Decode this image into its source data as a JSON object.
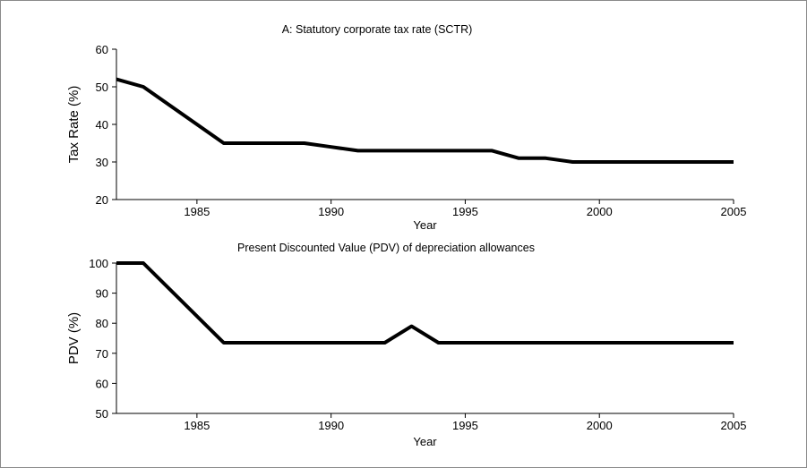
{
  "chart_data": [
    {
      "type": "line",
      "title": "A: Statutory corporate tax rate (SCTR)",
      "xlabel": "Year",
      "ylabel": "Tax Rate (%)",
      "xlim": [
        1982,
        2005
      ],
      "ylim": [
        20,
        60
      ],
      "xticks": [
        1985,
        1990,
        1995,
        2000,
        2005
      ],
      "yticks": [
        20,
        30,
        40,
        50,
        60
      ],
      "grid": false,
      "color": "#000000",
      "x": [
        1982,
        1983,
        1986,
        1987,
        1988,
        1989,
        1990,
        1991,
        1992,
        1993,
        1994,
        1995,
        1996,
        1997,
        1998,
        1999,
        2000,
        2001,
        2002,
        2003,
        2004,
        2005
      ],
      "y": [
        52,
        50,
        35,
        35,
        35,
        35,
        34,
        33,
        33,
        33,
        33,
        33,
        33,
        31,
        31,
        30,
        30,
        30,
        30,
        30,
        30,
        30
      ]
    },
    {
      "type": "line",
      "title": "Present Discounted Value (PDV) of depreciation allowances",
      "xlabel": "Year",
      "ylabel": "PDV (%)",
      "xlim": [
        1982,
        2005
      ],
      "ylim": [
        50,
        100
      ],
      "xticks": [
        1985,
        1990,
        1995,
        2000,
        2005
      ],
      "yticks": [
        50,
        60,
        70,
        80,
        90,
        100
      ],
      "grid": false,
      "color": "#000000",
      "x": [
        1982,
        1983,
        1986,
        1987,
        1988,
        1989,
        1990,
        1991,
        1992,
        1993,
        1994,
        1995,
        1996,
        1997,
        1998,
        1999,
        2000,
        2001,
        2002,
        2003,
        2004,
        2005
      ],
      "y": [
        100,
        100,
        73.5,
        73.5,
        73.5,
        73.5,
        73.5,
        73.5,
        73.5,
        79,
        73.5,
        73.5,
        73.5,
        73.5,
        73.5,
        73.5,
        73.5,
        73.5,
        73.5,
        73.5,
        73.5,
        73.5
      ]
    }
  ]
}
